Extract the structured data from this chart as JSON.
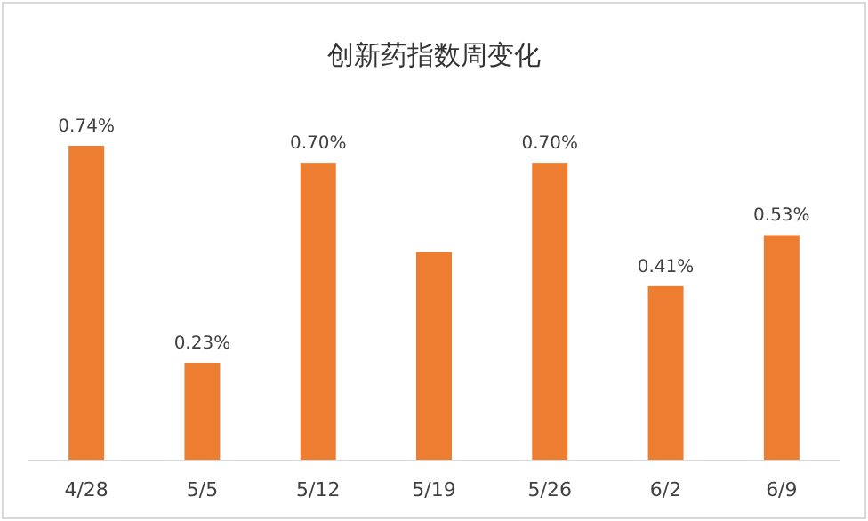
{
  "chart_data": {
    "type": "bar",
    "title": "创新药指数周变化",
    "categories": [
      "4/28",
      "5/5",
      "5/12",
      "5/19",
      "5/26",
      "6/2",
      "6/9"
    ],
    "values": [
      0.74,
      0.23,
      0.7,
      0.49,
      0.7,
      0.41,
      0.53
    ],
    "value_labels": [
      "0.74%",
      "0.23%",
      "0.70%",
      null,
      "0.70%",
      "0.41%",
      "0.53%"
    ],
    "color": "#ed7d31"
  }
}
